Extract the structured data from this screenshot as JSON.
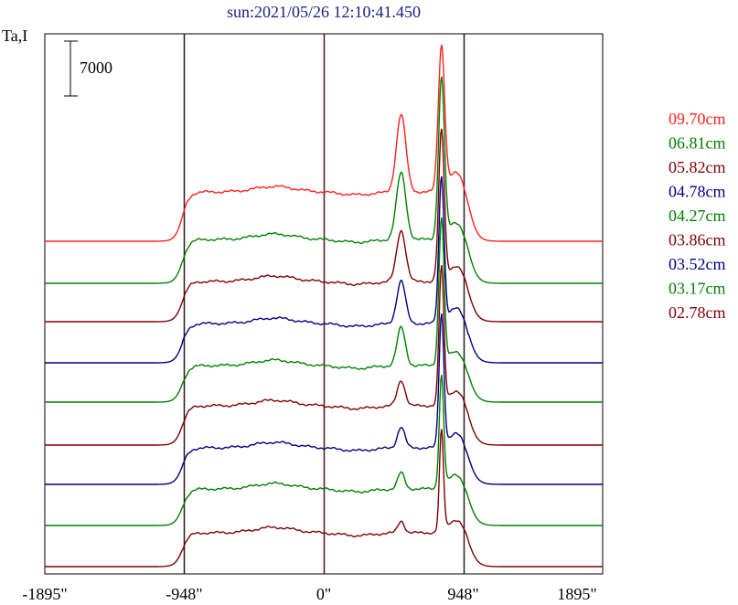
{
  "chart_data": {
    "type": "line",
    "title": "sun:2021/05/26 12:10:41.450",
    "ylabel": "Ta,I",
    "xlabel": "",
    "xlim": [
      -1895,
      1895
    ],
    "x_ticks": [
      -1895,
      -948,
      0,
      948,
      1895
    ],
    "x_tick_labels": [
      "-1895\"",
      "-948\"",
      "0\"",
      "948\"",
      "1895\""
    ],
    "vertical_lines": [
      -948,
      0,
      948
    ],
    "scale_bar": {
      "value": 7000,
      "label": "7000"
    },
    "grid": false,
    "legend_position": "right",
    "colors": {
      "red": "#ff2020",
      "green": "#008000",
      "maroon": "#800000",
      "navy": "#000080"
    },
    "series": [
      {
        "name": "09.70cm",
        "color": "#ff2020",
        "baseline_y": 264,
        "plateau_y": 210,
        "amp1": 85,
        "amp2": 157,
        "w1": 44,
        "w2": 34,
        "x": [
          -1895,
          -1500,
          -1000,
          -948,
          -900,
          -600,
          -400,
          -200,
          0,
          200,
          400,
          500,
          600,
          800,
          880,
          948,
          1000,
          1200,
          1895
        ],
        "y": [
          0,
          0,
          2000,
          16000,
          24000,
          24000,
          28000,
          24000,
          24000,
          30000,
          60000,
          35000,
          30000,
          40000,
          105000,
          48000,
          20000,
          0,
          0
        ]
      },
      {
        "name": "06.81cm",
        "color": "#008000",
        "baseline_y": 310,
        "plateau_y": 262,
        "amp1": 73,
        "amp2": 174,
        "w1": 44,
        "w2": 32,
        "x": [
          -1895,
          -948,
          0,
          500,
          880,
          948,
          1895
        ],
        "y": [
          0,
          15000,
          20000,
          40000,
          100000,
          35000,
          0
        ]
      },
      {
        "name": "05.82cm",
        "color": "#800000",
        "baseline_y": 352,
        "plateau_y": 308,
        "amp1": 56,
        "amp2": 163,
        "w1": 42,
        "w2": 30,
        "x": [
          -1895,
          -948,
          0,
          500,
          880,
          948,
          1895
        ],
        "y": [
          0,
          14000,
          18000,
          30000,
          90000,
          30000,
          0
        ]
      },
      {
        "name": "04.78cm",
        "color": "#000080",
        "baseline_y": 397,
        "plateau_y": 354,
        "amp1": 47,
        "amp2": 159,
        "w1": 40,
        "w2": 28,
        "x": [
          -1895,
          -948,
          0,
          500,
          880,
          948,
          1895
        ],
        "y": [
          0,
          13000,
          16000,
          25000,
          88000,
          28000,
          0
        ]
      },
      {
        "name": "04.27cm",
        "color": "#008000",
        "baseline_y": 440,
        "plateau_y": 400,
        "amp1": 42,
        "amp2": 160,
        "w1": 38,
        "w2": 28,
        "x": [
          -1895,
          -948,
          0,
          500,
          880,
          948,
          1895
        ],
        "y": [
          0,
          12000,
          15000,
          22000,
          88000,
          27000,
          0
        ]
      },
      {
        "name": "03.86cm",
        "color": "#800000",
        "baseline_y": 487,
        "plateau_y": 444,
        "amp1": 28,
        "amp2": 150,
        "w1": 36,
        "w2": 26,
        "x": [
          -1895,
          -948,
          0,
          500,
          880,
          948,
          1895
        ],
        "y": [
          0,
          12000,
          14000,
          16000,
          80000,
          25000,
          0
        ]
      },
      {
        "name": "03.52cm",
        "color": "#000080",
        "baseline_y": 530,
        "plateau_y": 490,
        "amp1": 23,
        "amp2": 144,
        "w1": 34,
        "w2": 26,
        "x": [
          -1895,
          -948,
          0,
          500,
          880,
          948,
          1895
        ],
        "y": [
          0,
          11000,
          13000,
          12000,
          78000,
          23000,
          0
        ]
      },
      {
        "name": "03.17cm",
        "color": "#008000",
        "baseline_y": 575,
        "plateau_y": 535,
        "amp1": 18,
        "amp2": 122,
        "w1": 32,
        "w2": 24,
        "x": [
          -1895,
          -948,
          0,
          500,
          880,
          948,
          1895
        ],
        "y": [
          0,
          11000,
          12000,
          10000,
          70000,
          22000,
          0
        ]
      },
      {
        "name": "02.78cm",
        "color": "#800000",
        "baseline_y": 620,
        "plateau_y": 583,
        "amp1": 13,
        "amp2": 110,
        "w1": 30,
        "w2": 22,
        "x": [
          -1895,
          -948,
          0,
          500,
          880,
          948,
          1895
        ],
        "y": [
          0,
          10000,
          11000,
          8000,
          65000,
          20000,
          0
        ]
      }
    ]
  }
}
